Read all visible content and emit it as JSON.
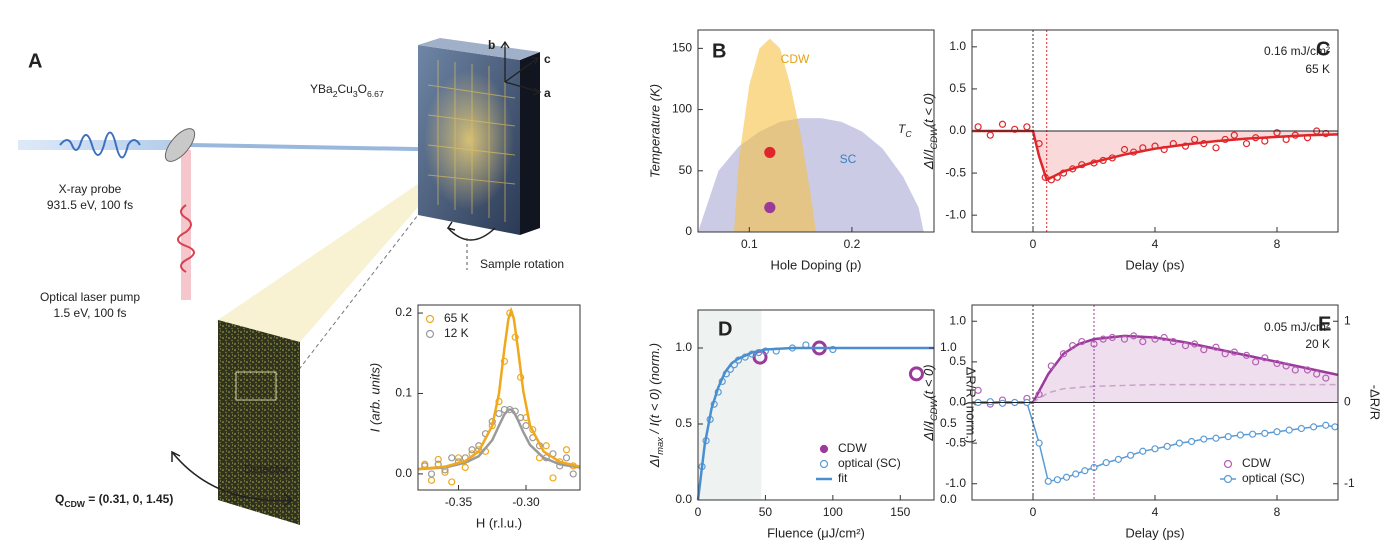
{
  "diagram": {
    "label": "A",
    "sample": [
      "YBa",
      "2",
      "Cu",
      "3",
      "O",
      "6.67"
    ],
    "axes": [
      "b",
      "c",
      "a"
    ],
    "probe": [
      "X-ray probe",
      "931.5 eV, 100 fs"
    ],
    "pump": [
      "Optical laser pump",
      "1.5 eV, 100 fs"
    ],
    "rotation": "Sample rotation",
    "detector": "Detector",
    "q": [
      "Q",
      "CDW",
      " = (0.31, 0, 1.45)"
    ]
  },
  "chart_data": [
    {
      "type": "scatter",
      "x_label": "H (r.l.u.)",
      "y_label": "I (arb. units)",
      "xlim": [
        -0.38,
        -0.26
      ],
      "xticks": [
        -0.35,
        {
          "value": -0.3,
          "label": "-0.30"
        }
      ],
      "ylim": [
        -0.02,
        0.21
      ],
      "yticks": [
        {
          "value": 0,
          "label": "0.0"
        },
        0.1,
        0.2
      ],
      "legend": "upper left",
      "series": [
        {
          "name": "65 K",
          "color": "#f0a81c",
          "style": "points",
          "x": [
            -0.375,
            -0.37,
            -0.365,
            -0.36,
            -0.355,
            -0.35,
            -0.345,
            -0.34,
            -0.335,
            -0.33,
            -0.325,
            -0.32,
            -0.316,
            -0.312,
            -0.308,
            -0.304,
            -0.3,
            -0.295,
            -0.29,
            -0.285,
            -0.28,
            -0.275,
            -0.27,
            -0.265
          ],
          "values": [
            0.012,
            -0.008,
            0.018,
            0.002,
            -0.01,
            0.02,
            0.008,
            0.025,
            0.03,
            0.028,
            0.06,
            0.09,
            0.14,
            0.2,
            0.17,
            0.12,
            0.07,
            0.055,
            0.02,
            0.035,
            -0.005,
            0.015,
            0.03,
            0.01
          ]
        },
        {
          "name": "12 K",
          "color": "#9a9a9a",
          "style": "points",
          "x": [
            -0.375,
            -0.37,
            -0.365,
            -0.36,
            -0.355,
            -0.35,
            -0.345,
            -0.34,
            -0.335,
            -0.33,
            -0.325,
            -0.32,
            -0.316,
            -0.312,
            -0.308,
            -0.304,
            -0.3,
            -0.295,
            -0.29,
            -0.285,
            -0.28,
            -0.275,
            -0.27,
            -0.265
          ],
          "values": [
            0.01,
            0.0,
            0.012,
            0.005,
            0.02,
            0.015,
            0.02,
            0.03,
            0.035,
            0.05,
            0.065,
            0.075,
            0.08,
            0.08,
            0.078,
            0.07,
            0.06,
            0.045,
            0.035,
            0.02,
            0.025,
            0.01,
            0.02,
            0.0
          ]
        },
        {
          "color": "#9a9a9a",
          "style": "line",
          "x": [
            -0.38,
            -0.36,
            -0.345,
            -0.335,
            -0.325,
            -0.32,
            -0.316,
            -0.313,
            -0.311,
            -0.309,
            -0.306,
            -0.302,
            -0.297,
            -0.287,
            -0.275,
            -0.26
          ],
          "values": [
            0.006,
            0.008,
            0.014,
            0.022,
            0.042,
            0.06,
            0.074,
            0.08,
            0.08,
            0.077,
            0.067,
            0.052,
            0.036,
            0.02,
            0.012,
            0.008
          ]
        },
        {
          "color": "#f0a81c",
          "style": "line",
          "x": [
            -0.38,
            -0.36,
            -0.345,
            -0.335,
            -0.325,
            -0.32,
            -0.316,
            -0.313,
            -0.311,
            -0.309,
            -0.306,
            -0.302,
            -0.297,
            -0.287,
            -0.275,
            -0.26
          ],
          "values": [
            0.006,
            0.009,
            0.016,
            0.028,
            0.06,
            0.1,
            0.156,
            0.193,
            0.203,
            0.193,
            0.156,
            0.103,
            0.06,
            0.028,
            0.015,
            0.009
          ]
        }
      ]
    },
    {
      "type": "area",
      "label": "B",
      "x_label": "Hole Doping (p)",
      "y_label": "Temperature (K)",
      "xlim": [
        0.05,
        0.28
      ],
      "xticks": [
        0.1,
        0.2
      ],
      "ylim": [
        0,
        165
      ],
      "yticks": [
        0,
        50,
        100,
        150
      ],
      "annotations": [
        [
          "T",
          "C"
        ]
      ],
      "series": [
        {
          "name": "SC",
          "color": "#a9a9d6",
          "style": "area",
          "x": [
            0.05,
            0.07,
            0.09,
            0.11,
            0.13,
            0.15,
            0.17,
            0.19,
            0.21,
            0.23,
            0.25,
            0.265,
            0.27
          ],
          "values": [
            0,
            50,
            70,
            82,
            90,
            93,
            93,
            90,
            82,
            68,
            45,
            20,
            0
          ]
        },
        {
          "name": "CDW",
          "color": "#f5c244",
          "style": "area",
          "x": [
            0.085,
            0.09,
            0.1,
            0.11,
            0.12,
            0.13,
            0.14,
            0.15,
            0.16,
            0.165
          ],
          "values": [
            0,
            60,
            120,
            150,
            158,
            150,
            120,
            80,
            30,
            0
          ]
        },
        {
          "color": "#e0262a",
          "style": "points-filled",
          "x": [
            0.12
          ],
          "values": [
            65
          ]
        },
        {
          "color": "#9b3a9b",
          "style": "points-filled",
          "x": [
            0.12
          ],
          "values": [
            20
          ]
        }
      ]
    },
    {
      "type": "line",
      "label": "C",
      "x_label": "Delay (ps)",
      "y_label": [
        "ΔI/I",
        "CDW",
        "(t < 0)"
      ],
      "xlim": [
        -2,
        10
      ],
      "xticks": [
        0,
        4,
        8
      ],
      "ylim": [
        -1.2,
        1.2
      ],
      "yticks": [
        {
          "value": -1,
          "label": "-1.0"
        },
        -0.5,
        {
          "value": 0,
          "label": "0.0"
        },
        0.5,
        {
          "value": 1,
          "label": "1.0"
        }
      ],
      "annotations": [
        "0.16 mJ/cm²",
        "65 K"
      ],
      "hline": 0,
      "vlines": [
        {
          "x": 0,
          "color": "#333333"
        },
        {
          "x": 0.45,
          "color": "#e0262a"
        }
      ],
      "series": [
        {
          "color": "#e0262a",
          "style": "line",
          "fill": "#f7d0d0",
          "x": [
            -2,
            0,
            0.2,
            0.45,
            1,
            2,
            3,
            4,
            5,
            6,
            7,
            8,
            9,
            10
          ],
          "values": [
            0,
            0,
            -0.3,
            -0.58,
            -0.48,
            -0.37,
            -0.28,
            -0.21,
            -0.16,
            -0.12,
            -0.09,
            -0.07,
            -0.05,
            -0.04
          ]
        },
        {
          "color": "#e0262a",
          "style": "points",
          "x": [
            -1.8,
            -1.4,
            -1,
            -0.6,
            -0.2,
            0.2,
            0.4,
            0.6,
            0.8,
            1,
            1.3,
            1.6,
            2,
            2.3,
            2.6,
            3,
            3.3,
            3.6,
            4,
            4.3,
            4.6,
            5,
            5.3,
            5.6,
            6,
            6.3,
            6.6,
            7,
            7.3,
            7.6,
            8,
            8.3,
            8.6,
            9,
            9.3,
            9.6
          ],
          "values": [
            0.05,
            -0.05,
            0.08,
            0.02,
            0.05,
            -0.15,
            -0.55,
            -0.58,
            -0.55,
            -0.5,
            -0.45,
            -0.4,
            -0.38,
            -0.35,
            -0.32,
            -0.22,
            -0.25,
            -0.2,
            -0.18,
            -0.22,
            -0.15,
            -0.18,
            -0.1,
            -0.15,
            -0.2,
            -0.1,
            -0.05,
            -0.15,
            -0.08,
            -0.12,
            -0.02,
            -0.1,
            -0.05,
            -0.08,
            0.0,
            -0.03
          ]
        }
      ]
    },
    {
      "type": "line",
      "label": "D",
      "x_label": "Fluence (μJ/cm²)",
      "y_label": [
        "ΔI",
        "max",
        " / I(t < 0) (norm.)"
      ],
      "y2_label": "ΔR/R (norm.)",
      "xlim": [
        0,
        175
      ],
      "xticks": [
        0,
        50,
        100,
        150
      ],
      "ylim": [
        0,
        1.25
      ],
      "yticks": [
        {
          "value": 0,
          "label": "0.0"
        },
        0.5,
        {
          "value": 1,
          "label": "1.0"
        }
      ],
      "y2lim": [
        0,
        1.25
      ],
      "y2ticks": [
        {
          "value": 0,
          "label": "0.0"
        },
        0.5,
        {
          "value": 1,
          "label": "1.0"
        }
      ],
      "shade": [
        0,
        47
      ],
      "shade_color": "#eef2f0",
      "legend": "lower right",
      "series": [
        {
          "name": "CDW",
          "color": "#9b3a9b",
          "style": "points-large",
          "x": [
            46,
            90,
            162
          ],
          "values": [
            0.94,
            1.0,
            0.83
          ]
        },
        {
          "name": "optical (SC)",
          "color": "#5b9bd5",
          "style": "points",
          "axis": "y2",
          "x": [
            3,
            6,
            9,
            12,
            15,
            18,
            21,
            24,
            27,
            30,
            35,
            40,
            45,
            50,
            58,
            70,
            80,
            100
          ],
          "values": [
            0.22,
            0.39,
            0.53,
            0.63,
            0.71,
            0.78,
            0.83,
            0.86,
            0.89,
            0.92,
            0.94,
            0.96,
            0.97,
            0.98,
            0.98,
            1.0,
            1.02,
            0.99
          ]
        },
        {
          "name": "fit",
          "color": "#4a8ed0",
          "style": "line",
          "x": [
            0,
            5,
            10,
            15,
            20,
            25,
            30,
            40,
            50,
            70,
            100,
            175
          ],
          "values": [
            0,
            0.365,
            0.6,
            0.74,
            0.84,
            0.9,
            0.93,
            0.97,
            0.99,
            1.0,
            1.0,
            1.0
          ]
        }
      ]
    },
    {
      "type": "line",
      "label": "E",
      "x_label": "Delay (ps)",
      "y_label": [
        "ΔI/I",
        "CDW",
        "(t < 0)"
      ],
      "y2_label": "-ΔR/R",
      "xlim": [
        -2,
        10
      ],
      "xticks": [
        0,
        4,
        8
      ],
      "ylim": [
        -1.2,
        1.2
      ],
      "yticks": [
        {
          "value": -1,
          "label": "-1.0"
        },
        -0.5,
        {
          "value": 0,
          "label": "0.0"
        },
        0.5,
        {
          "value": 1,
          "label": "1.0"
        }
      ],
      "y2lim": [
        -1.2,
        1.2
      ],
      "y2ticks": [
        -1,
        0,
        1
      ],
      "annotations": [
        "0.05 mJ/cm²",
        "20 K"
      ],
      "hline": 0,
      "legend": "lower right",
      "vlines": [
        {
          "x": 0,
          "color": "#333333"
        },
        {
          "x": 2,
          "color": "#9b3a9b"
        }
      ],
      "series": [
        {
          "color": "#9b3a9b",
          "style": "line",
          "fill": "#ead6ea",
          "x": [
            -2,
            0,
            0.5,
            1,
            1.5,
            2,
            3,
            4,
            5,
            6,
            7,
            8,
            9,
            10
          ],
          "values": [
            0,
            0,
            0.35,
            0.6,
            0.72,
            0.78,
            0.82,
            0.8,
            0.74,
            0.66,
            0.58,
            0.5,
            0.42,
            0.34
          ]
        },
        {
          "color": "#c9a3c9",
          "style": "dashed",
          "x": [
            0,
            0.5,
            1,
            2,
            3,
            4,
            6,
            8,
            10
          ],
          "values": [
            0,
            0.12,
            0.17,
            0.2,
            0.21,
            0.22,
            0.22,
            0.22,
            0.22
          ]
        },
        {
          "name": "CDW",
          "color": "#b55fb5",
          "style": "points",
          "x": [
            -1.8,
            -1.4,
            -1,
            -0.6,
            -0.2,
            0.2,
            0.6,
            1,
            1.3,
            1.6,
            2,
            2.3,
            2.6,
            3,
            3.3,
            3.6,
            4,
            4.3,
            4.6,
            5,
            5.3,
            5.6,
            6,
            6.3,
            6.6,
            7,
            7.3,
            7.6,
            8,
            8.3,
            8.6,
            9,
            9.3,
            9.6
          ],
          "values": [
            0.15,
            -0.02,
            0.03,
            0.0,
            0.05,
            0.1,
            0.45,
            0.6,
            0.7,
            0.75,
            0.72,
            0.78,
            0.8,
            0.78,
            0.82,
            0.75,
            0.78,
            0.8,
            0.75,
            0.7,
            0.72,
            0.65,
            0.68,
            0.6,
            0.62,
            0.58,
            0.5,
            0.55,
            0.48,
            0.45,
            0.4,
            0.4,
            0.35,
            0.3
          ]
        },
        {
          "name": "optical (SC)",
          "color": "#5b9bd5",
          "style": "points-line",
          "axis": "y2",
          "x": [
            -1.8,
            -1.4,
            -1,
            -0.6,
            -0.2,
            0.2,
            0.5,
            0.8,
            1.1,
            1.4,
            1.7,
            2,
            2.4,
            2.8,
            3.2,
            3.6,
            4,
            4.4,
            4.8,
            5.2,
            5.6,
            6,
            6.4,
            6.8,
            7.2,
            7.6,
            8,
            8.4,
            8.8,
            9.2,
            9.6,
            9.9
          ],
          "values": [
            0,
            0.01,
            -0.01,
            0,
            0,
            -0.5,
            -0.97,
            -0.95,
            -0.92,
            -0.88,
            -0.84,
            -0.8,
            -0.74,
            -0.7,
            -0.65,
            -0.6,
            -0.57,
            -0.54,
            -0.5,
            -0.48,
            -0.45,
            -0.44,
            -0.42,
            -0.4,
            -0.39,
            -0.38,
            -0.36,
            -0.34,
            -0.32,
            -0.3,
            -0.28,
            -0.3
          ]
        }
      ]
    }
  ]
}
